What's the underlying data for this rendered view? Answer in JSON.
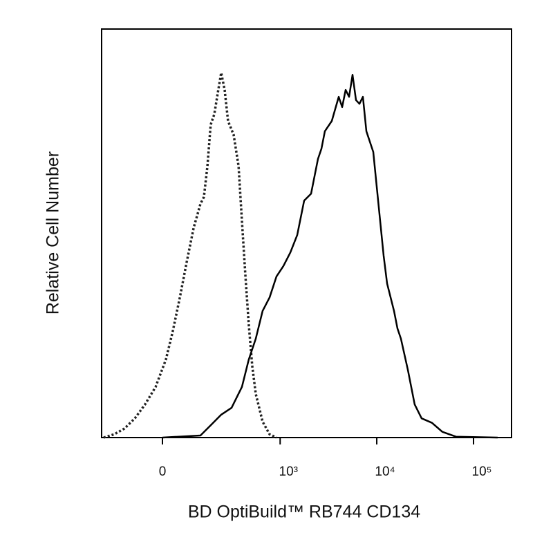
{
  "chart_data": {
    "type": "histogram-overlay",
    "x_label": "BD OptiBuild™ RB744 CD134",
    "y_label": "Relative Cell Number",
    "xscale": "biexponential",
    "xlim": [
      -245,
      247000
    ],
    "xticks": [
      0,
      {
        "value": 1000,
        "label": "10³"
      },
      {
        "value": 10000,
        "label": "10⁴"
      },
      {
        "value": 100000,
        "label": "10⁵"
      }
    ],
    "ylim": [
      0,
      100
    ],
    "series": [
      {
        "color": "#222222",
        "style": "dotted",
        "x": [
          -232,
          -173,
          -126,
          -86,
          -52,
          -20,
          10,
          30,
          52,
          74,
          99,
          126,
          141,
          157,
          173,
          192,
          211,
          232,
          254,
          278,
          321,
          363,
          395,
          431,
          468,
          510,
          555,
          656,
          776,
          915
        ],
        "values": [
          0,
          0.8,
          2.2,
          4.7,
          8.1,
          12.4,
          19.1,
          25.9,
          34.3,
          42.8,
          51.3,
          57.2,
          58.9,
          66.5,
          76.6,
          79.2,
          84.3,
          89.3,
          85.1,
          77.5,
          74.1,
          66.5,
          53.0,
          39.4,
          27.6,
          17.4,
          10.7,
          3.9,
          0.8,
          0
        ]
      },
      {
        "color": "#000000",
        "style": "solid",
        "x": [
          0,
          126,
          173,
          232,
          304,
          395,
          468,
          555,
          656,
          776,
          915,
          1082,
          1276,
          1504,
          1775,
          2092,
          2468,
          2679,
          2908,
          3432,
          4044,
          4390,
          4769,
          5176,
          5619,
          6100,
          6625,
          7192,
          7807,
          9199,
          9992,
          11773,
          12786,
          15079,
          16360,
          17763,
          20935,
          24668,
          29085,
          37198,
          47604,
          66173,
          177510
        ],
        "values": [
          0,
          0.5,
          3.0,
          5.6,
          7.3,
          12.4,
          19.1,
          24.2,
          31.0,
          34.3,
          39.4,
          42.0,
          45.3,
          49.6,
          58.0,
          59.7,
          68.2,
          70.7,
          75.0,
          77.5,
          83.4,
          80.9,
          85.1,
          83.4,
          88.8,
          82.6,
          81.7,
          83.4,
          75.0,
          69.9,
          61.4,
          44.5,
          37.7,
          31.0,
          26.7,
          24.2,
          16.6,
          8.1,
          4.7,
          3.6,
          1.4,
          0.2,
          0
        ]
      }
    ]
  }
}
